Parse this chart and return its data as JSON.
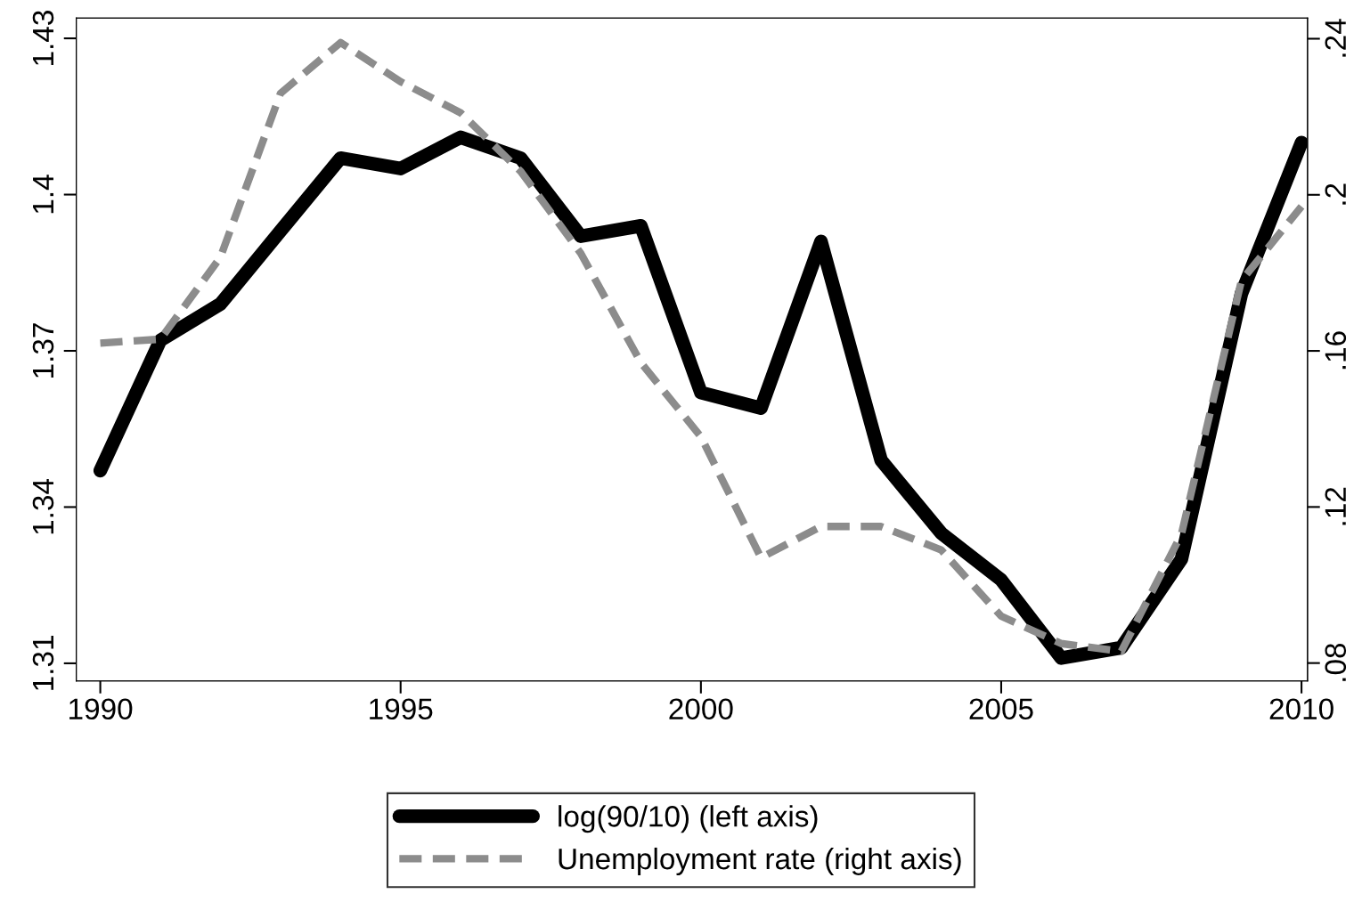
{
  "chart_data": {
    "type": "line",
    "x": [
      1990,
      1991,
      1992,
      1993,
      1994,
      1995,
      1996,
      1997,
      1998,
      1999,
      2000,
      2001,
      2002,
      2003,
      2004,
      2005,
      2006,
      2007,
      2008,
      2009,
      2010
    ],
    "series": [
      {
        "name": "log(90/10) (left axis)",
        "color": "#000000",
        "line_style": "solid",
        "values": [
          1.347,
          1.372,
          1.379,
          1.393,
          1.407,
          1.405,
          1.411,
          1.407,
          1.392,
          1.394,
          1.362,
          1.359,
          1.391,
          1.349,
          1.335,
          1.326,
          1.311,
          1.313,
          1.33,
          1.381,
          1.41
        ]
      },
      {
        "name": "Unemployment rate (right axis)",
        "color": "#8c8c8c",
        "line_style": "dashed",
        "axis": "y2",
        "values": [
          0.162,
          0.163,
          0.184,
          0.226,
          0.239,
          0.229,
          0.221,
          0.206,
          0.185,
          0.157,
          0.138,
          0.107,
          0.115,
          0.115,
          0.109,
          0.092,
          0.085,
          0.083,
          0.113,
          0.178,
          0.197
        ]
      }
    ],
    "xlim": [
      1989.6,
      2010.1
    ],
    "xticks": [
      1990,
      1995,
      2000,
      2005,
      2010
    ],
    "ylim": [
      1.3066,
      1.4339
    ],
    "yticks": [
      1.31,
      1.34,
      1.37,
      1.4,
      1.43
    ],
    "y2lim": [
      0.0754,
      0.2453
    ],
    "y2ticks": [
      {
        "value": 0.08,
        "label": ".08"
      },
      {
        "value": 0.12,
        "label": ".12"
      },
      {
        "value": 0.16,
        "label": ".16"
      },
      {
        "value": 0.2,
        "label": ".2"
      },
      {
        "value": 0.24,
        "label": ".24"
      }
    ],
    "grid": false,
    "legend": "bottom",
    "marker": "none"
  }
}
